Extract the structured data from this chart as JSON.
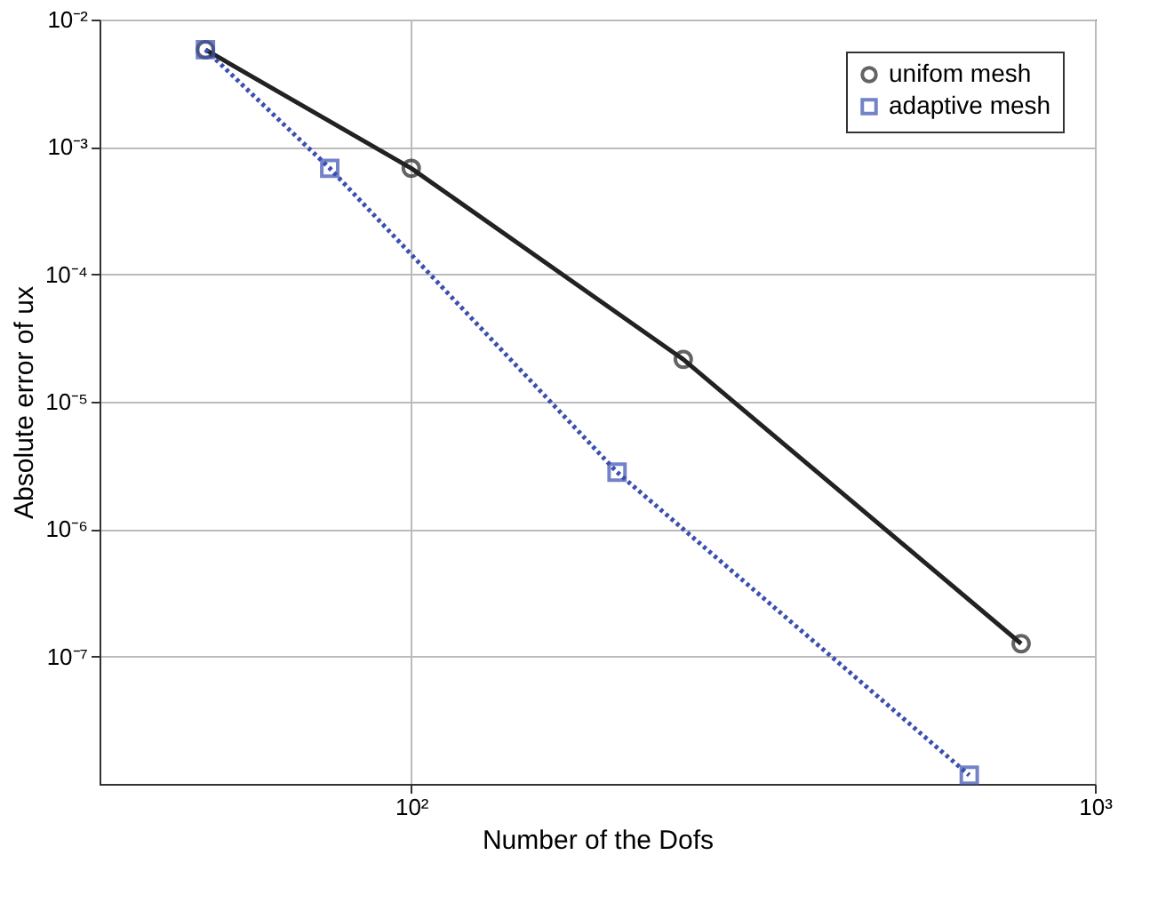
{
  "chart_data": {
    "type": "line",
    "xlabel": "Number of the  Dofs",
    "ylabel": "Absolute error of ux",
    "log": "xy",
    "grid": true,
    "legend": "top right",
    "xlim": [
      35,
      1000
    ],
    "xticks": [
      {
        "value": 100,
        "label": "10²"
      },
      {
        "value": 1000,
        "label": "10³"
      }
    ],
    "ylim": [
      1e-08,
      0.01
    ],
    "yticks": [
      {
        "value": 1e-07,
        "label": "10⁻⁷"
      },
      {
        "value": 1e-06,
        "label": "10⁻⁶"
      },
      {
        "value": 1e-05,
        "label": "10⁻⁵"
      },
      {
        "value": 0.0001,
        "label": "10⁻⁴"
      },
      {
        "value": 0.001,
        "label": "10⁻³"
      },
      {
        "value": 0.01,
        "label": "10⁻²"
      }
    ],
    "series": [
      {
        "name": "unifom mesh",
        "color": "#222222",
        "marker": "circle",
        "line_style": "solid",
        "x": [
          50,
          100,
          250,
          780
        ],
        "values": [
          0.0058,
          0.00068,
          2.15e-05,
          1.26e-07
        ]
      },
      {
        "name": "adaptive mesh",
        "color": "#3a50b0",
        "marker": "square",
        "line_style": "dotted",
        "x": [
          50,
          76,
          200,
          655
        ],
        "values": [
          0.0058,
          0.00068,
          2.8e-06,
          1.17e-08
        ]
      }
    ]
  }
}
